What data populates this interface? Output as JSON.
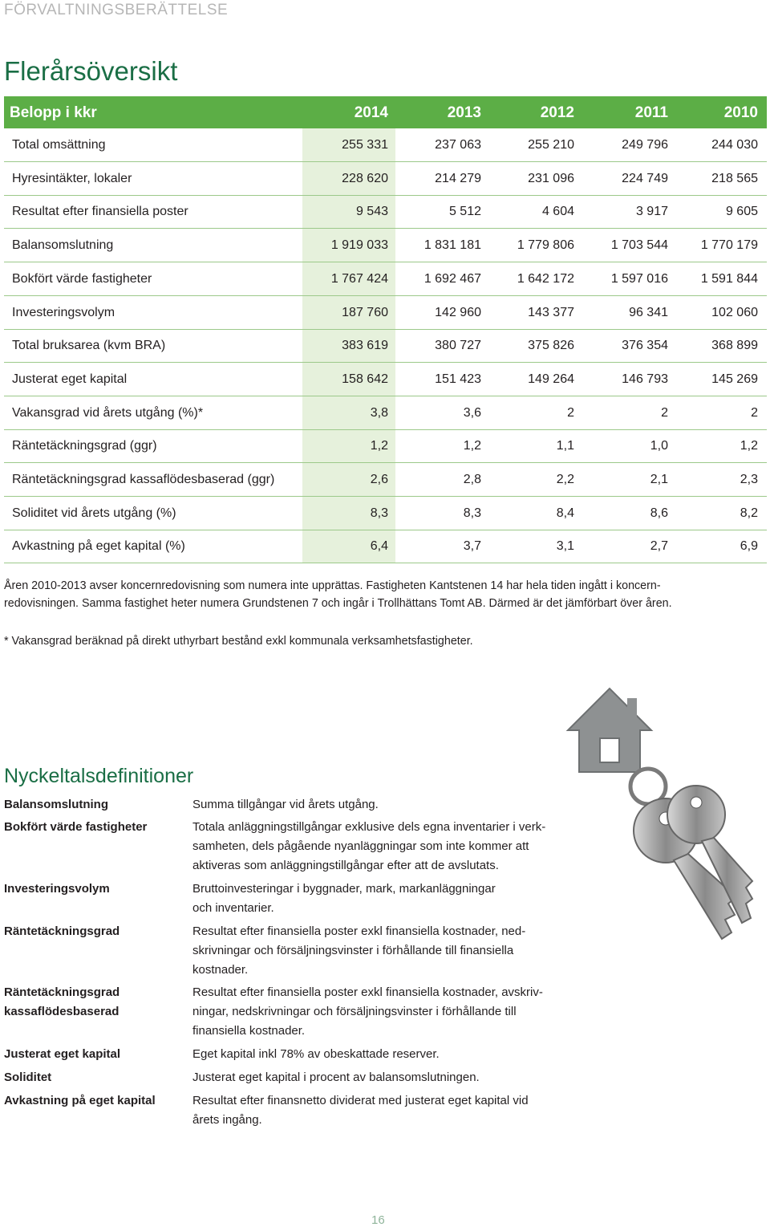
{
  "header": {
    "section": "FÖRVALTNINGSBERÄTTELSE",
    "page_number": "16"
  },
  "overview": {
    "title": "Flerårsöversikt",
    "table": {
      "header": [
        "Belopp i kkr",
        "2014",
        "2013",
        "2012",
        "2011",
        "2010"
      ],
      "rows": [
        [
          "Total omsättning",
          "255 331",
          "237 063",
          "255 210",
          "249 796",
          "244 030"
        ],
        [
          "Hyresintäkter, lokaler",
          "228 620",
          "214 279",
          "231 096",
          "224 749",
          "218 565"
        ],
        [
          "Resultat efter finansiella poster",
          "9 543",
          "5 512",
          "4 604",
          "3 917",
          "9 605"
        ],
        [
          "Balansomslutning",
          "1 919 033",
          "1 831 181",
          "1 779 806",
          "1 703 544",
          "1 770 179"
        ],
        [
          "Bokfört värde fastigheter",
          "1 767 424",
          "1 692 467",
          "1 642 172",
          "1 597 016",
          "1 591 844"
        ],
        [
          "Investeringsvolym",
          "187 760",
          "142 960",
          "143 377",
          "96 341",
          "102 060"
        ],
        [
          "Total bruksarea (kvm BRA)",
          "383 619",
          "380 727",
          "375 826",
          "376 354",
          "368 899"
        ],
        [
          "Justerat eget kapital",
          "158 642",
          "151 423",
          "149 264",
          "146 793",
          "145 269"
        ],
        [
          "Vakansgrad vid årets utgång (%)*",
          "3,8",
          "3,6",
          "2",
          "2",
          "2"
        ],
        [
          "Räntetäckningsgrad (ggr)",
          "1,2",
          "1,2",
          "1,1",
          "1,0",
          "1,2"
        ],
        [
          "Räntetäckningsgrad kassaflödesbaserad (ggr)",
          "2,6",
          "2,8",
          "2,2",
          "2,1",
          "2,3"
        ],
        [
          "Soliditet vid årets utgång (%)",
          "8,3",
          "8,3",
          "8,4",
          "8,6",
          "8,2"
        ],
        [
          "Avkastning på eget kapital (%)",
          "6,4",
          "3,7",
          "3,1",
          "2,7",
          "6,9"
        ]
      ]
    },
    "notes": [
      "Åren 2010-2013 avser koncernredovisning som numera inte upprättas. Fastigheten Kantstenen 14 har hela tiden ingått i koncern-",
      "redovisningen. Samma fastighet heter numera Grundstenen 7 och ingår i Trollhättans Tomt AB. Därmed är det jämförbart över åren."
    ],
    "footnote": "* Vakansgrad beräknad på direkt uthyrbart bestånd exkl kommunala verksamhetsfastigheter."
  },
  "definitions": {
    "title": "Nyckeltalsdefinitioner",
    "items": [
      {
        "term": [
          "Balansomslutning"
        ],
        "description": [
          "Summa tillgångar vid årets utgång."
        ]
      },
      {
        "term": [
          "Bokfört värde fastigheter"
        ],
        "description": [
          "Totala anläggningstillgångar exklusive dels egna inventarier i verk-",
          "samheten, dels pågående nyanläggningar som inte kommer att",
          "aktiveras som anläggningstillgångar efter att de avslutats."
        ]
      },
      {
        "term": [
          "Investeringsvolym"
        ],
        "description": [
          "Bruttoinvesteringar i byggnader, mark, markanläggningar",
          "och inventarier."
        ]
      },
      {
        "term": [
          "Räntetäckningsgrad"
        ],
        "description": [
          "Resultat efter finansiella poster exkl finansiella kostnader, ned-",
          "skrivningar och försäljningsvinster i förhållande till finansiella",
          "kostnader."
        ]
      },
      {
        "term": [
          "Räntetäckningsgrad",
          "kassaflödesbaserad"
        ],
        "description": [
          "Resultat efter finansiella poster exkl finansiella kostnader, avskriv-",
          "ningar, nedskrivningar och försäljningsvinster i förhållande till",
          "finansiella kostnader."
        ]
      },
      {
        "term": [
          "Justerat eget kapital"
        ],
        "description": [
          "Eget kapital inkl 78% av obeskattade reserver."
        ]
      },
      {
        "term": [
          "Soliditet"
        ],
        "description": [
          "Justerat eget kapital i procent av balansomslutningen."
        ]
      },
      {
        "term": [
          "Avkastning på eget kapital"
        ],
        "description": [
          "Resultat efter finansnetto dividerat med justerat eget kapital vid",
          "årets ingång."
        ]
      }
    ]
  }
}
